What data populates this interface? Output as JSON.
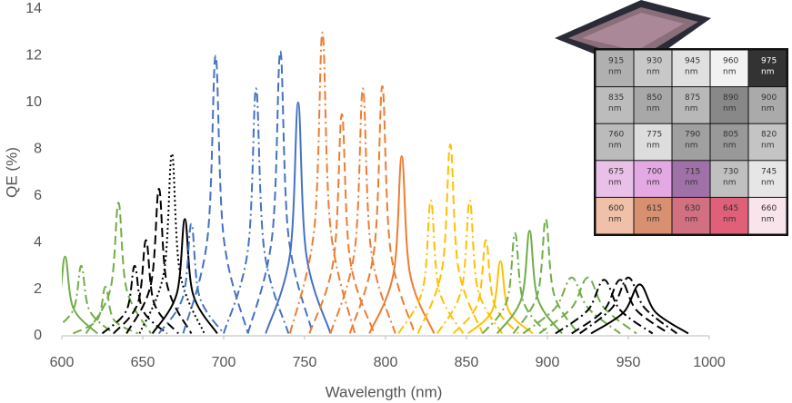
{
  "chart_data": {
    "type": "line",
    "xlabel": "Wavelength (nm)",
    "ylabel": "QE (%)",
    "xlim": [
      600,
      1000
    ],
    "xticks": [
      600,
      650,
      700,
      750,
      800,
      850,
      900,
      950,
      1000
    ],
    "ylim": [
      0,
      14
    ],
    "yticks": [
      0,
      2,
      4,
      6,
      8,
      10,
      12,
      14
    ],
    "grid": false,
    "series": [
      {
        "color": "#70ad47",
        "dash": "solid",
        "x": [
          582,
          597,
          602,
          607,
          622
        ],
        "values": [
          0.1,
          1.2,
          3.4,
          1.2,
          0.1
        ]
      },
      {
        "color": "#70ad47",
        "dash": "dashdot",
        "x": [
          592,
          607,
          612,
          617,
          632
        ],
        "values": [
          0.1,
          1.1,
          3.0,
          1.1,
          0.1
        ]
      },
      {
        "color": "#70ad47",
        "dash": "dash",
        "x": [
          607,
          622,
          627,
          632,
          647
        ],
        "values": [
          0.1,
          0.7,
          2.1,
          0.7,
          0.1
        ]
      },
      {
        "color": "#70ad47",
        "dash": "dash",
        "x": [
          615,
          630,
          635,
          640,
          655
        ],
        "values": [
          0.1,
          2.0,
          5.7,
          2.0,
          0.1
        ]
      },
      {
        "color": "#000000",
        "dash": "dashdot",
        "x": [
          625,
          640,
          645,
          650,
          665
        ],
        "values": [
          0.1,
          1.1,
          3.0,
          1.1,
          0.1
        ]
      },
      {
        "color": "#000000",
        "dash": "dash",
        "x": [
          632,
          647,
          652,
          657,
          672
        ],
        "values": [
          0.1,
          1.4,
          4.1,
          1.4,
          0.1
        ]
      },
      {
        "color": "#000000",
        "dash": "dash",
        "x": [
          640,
          655,
          660,
          665,
          680
        ],
        "values": [
          0.1,
          2.2,
          6.3,
          2.2,
          0.1
        ]
      },
      {
        "color": "#000000",
        "dash": "dot",
        "x": [
          648,
          663,
          668,
          673,
          688
        ],
        "values": [
          0.1,
          2.7,
          7.8,
          2.7,
          0.1
        ]
      },
      {
        "color": "#000000",
        "dash": "solid",
        "x": [
          656,
          671,
          676,
          681,
          696
        ],
        "values": [
          0.1,
          1.8,
          5.0,
          1.8,
          0.1
        ]
      },
      {
        "color": "#4472c4",
        "dash": "dashdot",
        "x": [
          660,
          675,
          680,
          685,
          700
        ],
        "values": [
          0.1,
          1.7,
          4.8,
          1.7,
          0.1
        ]
      },
      {
        "color": "#4472c4",
        "dash": "dash",
        "x": [
          675,
          690,
          695,
          700,
          715
        ],
        "values": [
          0.1,
          4.2,
          12.0,
          4.2,
          0.1
        ]
      },
      {
        "color": "#4472c4",
        "dash": "dashdot",
        "x": [
          700,
          715,
          720,
          725,
          740
        ],
        "values": [
          0.1,
          3.7,
          10.6,
          3.7,
          0.1
        ]
      },
      {
        "color": "#4472c4",
        "dash": "dash",
        "x": [
          715,
          730,
          735,
          740,
          755
        ],
        "values": [
          0.1,
          4.3,
          12.2,
          4.3,
          0.1
        ]
      },
      {
        "color": "#4472c4",
        "dash": "solid",
        "x": [
          726,
          741,
          746,
          751,
          766
        ],
        "values": [
          0.1,
          3.5,
          10.0,
          3.5,
          0.1
        ]
      },
      {
        "color": "#ed7d31",
        "dash": "dashdot",
        "x": [
          741,
          756,
          761,
          766,
          781
        ],
        "values": [
          0.1,
          4.6,
          13.0,
          4.6,
          0.1
        ]
      },
      {
        "color": "#ed7d31",
        "dash": "dash",
        "x": [
          753,
          768,
          773,
          778,
          793
        ],
        "values": [
          0.1,
          3.3,
          9.5,
          3.3,
          0.1
        ]
      },
      {
        "color": "#ed7d31",
        "dash": "dashdot",
        "x": [
          766,
          781,
          786,
          791,
          806
        ],
        "values": [
          0.1,
          3.7,
          10.6,
          3.7,
          0.1
        ]
      },
      {
        "color": "#ed7d31",
        "dash": "dash",
        "x": [
          778,
          793,
          798,
          803,
          818
        ],
        "values": [
          0.1,
          3.7,
          10.7,
          3.7,
          0.1
        ]
      },
      {
        "color": "#ed7d31",
        "dash": "solid",
        "x": [
          790,
          805,
          810,
          815,
          830
        ],
        "values": [
          0.1,
          2.7,
          7.7,
          2.7,
          0.1
        ]
      },
      {
        "color": "#ffc000",
        "dash": "dashdot",
        "x": [
          808,
          823,
          828,
          833,
          848
        ],
        "values": [
          0.1,
          2.0,
          5.8,
          2.0,
          0.1
        ]
      },
      {
        "color": "#ffc000",
        "dash": "dash",
        "x": [
          820,
          835,
          840,
          845,
          860
        ],
        "values": [
          0.1,
          2.9,
          8.2,
          2.9,
          0.1
        ]
      },
      {
        "color": "#ffc000",
        "dash": "dashdot",
        "x": [
          832,
          847,
          852,
          857,
          872
        ],
        "values": [
          0.1,
          2.0,
          5.8,
          2.0,
          0.1
        ]
      },
      {
        "color": "#ffc000",
        "dash": "dash",
        "x": [
          842,
          857,
          862,
          867,
          882
        ],
        "values": [
          0.1,
          1.4,
          4.1,
          1.4,
          0.1
        ]
      },
      {
        "color": "#ffc000",
        "dash": "solid",
        "x": [
          851,
          866,
          871,
          876,
          891
        ],
        "values": [
          0.1,
          1.1,
          3.2,
          1.1,
          0.1
        ]
      },
      {
        "color": "#70ad47",
        "dash": "dashdot",
        "x": [
          860,
          875,
          880,
          885,
          900
        ],
        "values": [
          0.1,
          1.5,
          4.4,
          1.5,
          0.1
        ]
      },
      {
        "color": "#70ad47",
        "dash": "solid",
        "x": [
          869,
          884,
          889,
          894,
          909
        ],
        "values": [
          0.1,
          1.6,
          4.5,
          1.6,
          0.1
        ]
      },
      {
        "color": "#70ad47",
        "dash": "dash",
        "x": [
          879,
          894,
          899,
          904,
          919
        ],
        "values": [
          0.1,
          1.8,
          5.0,
          1.8,
          0.1
        ]
      },
      {
        "color": "#70ad47",
        "dash": "dashdot",
        "x": [
          885,
          905,
          915,
          925,
          945
        ],
        "values": [
          0.1,
          1.2,
          2.5,
          1.2,
          0.1
        ]
      },
      {
        "color": "#70ad47",
        "dash": "dash",
        "x": [
          895,
          915,
          925,
          935,
          955
        ],
        "values": [
          0.1,
          1.2,
          2.5,
          1.2,
          0.1
        ]
      },
      {
        "color": "#000000",
        "dash": "dashdot",
        "x": [
          905,
          925,
          935,
          945,
          965
        ],
        "values": [
          0.1,
          1.1,
          2.4,
          1.1,
          0.1
        ]
      },
      {
        "color": "#000000",
        "dash": "dash",
        "x": [
          915,
          935,
          945,
          955,
          975
        ],
        "values": [
          0.1,
          1.1,
          2.4,
          1.1,
          0.1
        ]
      },
      {
        "color": "#000000",
        "dash": "dashdot",
        "x": [
          920,
          940,
          950,
          960,
          980
        ],
        "values": [
          0.1,
          1.2,
          2.5,
          1.2,
          0.1
        ]
      },
      {
        "color": "#000000",
        "dash": "solid",
        "x": [
          927,
          947,
          957,
          967,
          987
        ],
        "values": [
          0.1,
          1.0,
          2.2,
          1.0,
          0.1
        ]
      }
    ]
  },
  "inset": {
    "unit": "nm",
    "rows": [
      [
        {
          "label": "915",
          "color": "#b0b0b0"
        },
        {
          "label": "930",
          "color": "#c8c8c8"
        },
        {
          "label": "945",
          "color": "#e0e0e0"
        },
        {
          "label": "960",
          "color": "#f2f2f2"
        },
        {
          "label": "975",
          "color": "#333333"
        }
      ],
      [
        {
          "label": "835",
          "color": "#bcbcbc"
        },
        {
          "label": "850",
          "color": "#a8a8a8"
        },
        {
          "label": "875",
          "color": "#b8b8b8"
        },
        {
          "label": "890",
          "color": "#888888"
        },
        {
          "label": "900",
          "color": "#aaaaaa"
        }
      ],
      [
        {
          "label": "760",
          "color": "#bbbbbb"
        },
        {
          "label": "775",
          "color": "#dddddd"
        },
        {
          "label": "790",
          "color": "#a0a0a0"
        },
        {
          "label": "805",
          "color": "#999999"
        },
        {
          "label": "820",
          "color": "#c4c4c4"
        }
      ],
      [
        {
          "label": "675",
          "color": "#e8c0e8"
        },
        {
          "label": "700",
          "color": "#e4a8e4"
        },
        {
          "label": "715",
          "color": "#a070a8"
        },
        {
          "label": "730",
          "color": "#c0c0c0"
        },
        {
          "label": "745",
          "color": "#e6e6e6"
        }
      ],
      [
        {
          "label": "600",
          "color": "#f0c0a8"
        },
        {
          "label": "615",
          "color": "#d89070"
        },
        {
          "label": "630",
          "color": "#d07080"
        },
        {
          "label": "645",
          "color": "#e0607a"
        },
        {
          "label": "660",
          "color": "#f8e4ea"
        }
      ]
    ]
  }
}
